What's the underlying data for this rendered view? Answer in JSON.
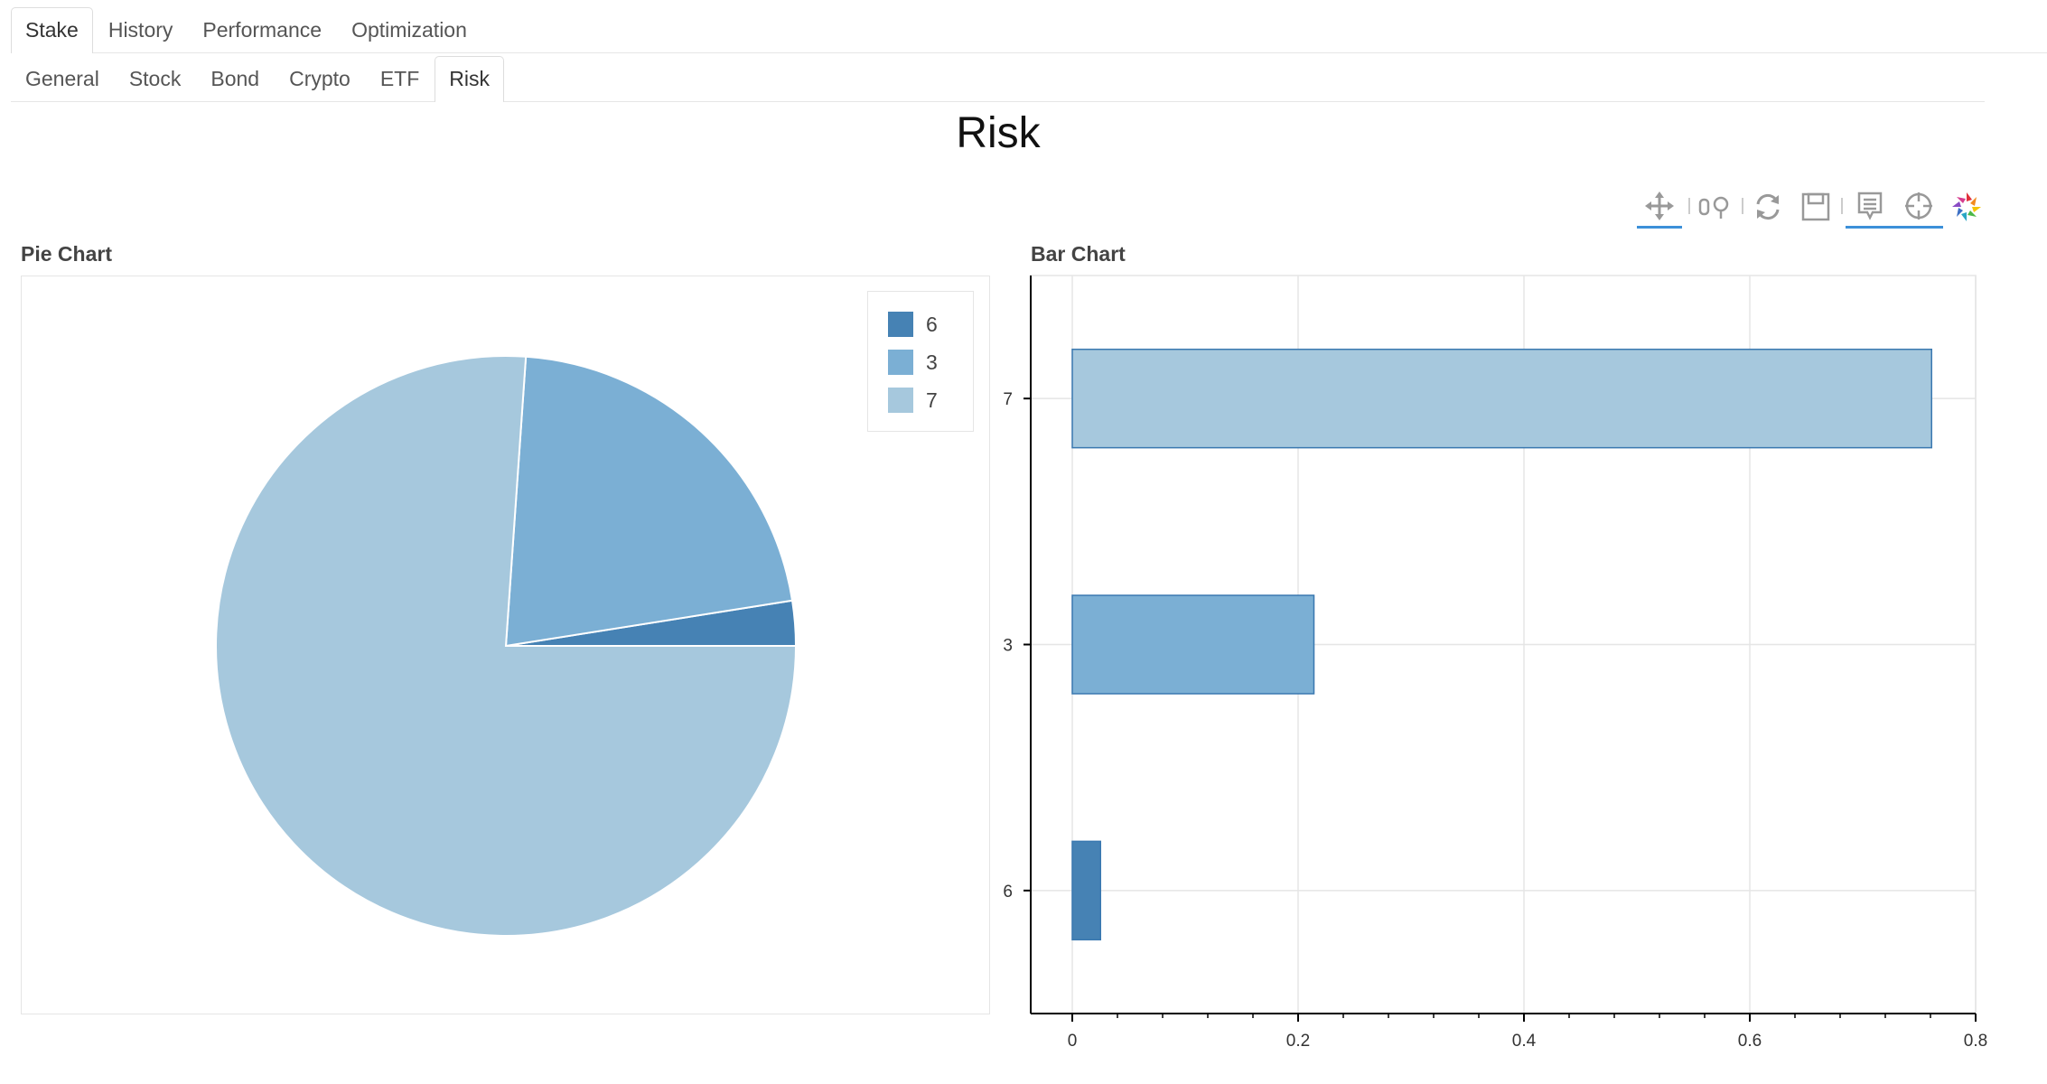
{
  "tabs_main": [
    {
      "label": "Stake",
      "active": true
    },
    {
      "label": "History",
      "active": false
    },
    {
      "label": "Performance",
      "active": false
    },
    {
      "label": "Optimization",
      "active": false
    }
  ],
  "tabs_sub": [
    {
      "label": "General",
      "active": false
    },
    {
      "label": "Stock",
      "active": false
    },
    {
      "label": "Bond",
      "active": false
    },
    {
      "label": "Crypto",
      "active": false
    },
    {
      "label": "ETF",
      "active": false
    },
    {
      "label": "Risk",
      "active": true
    }
  ],
  "page_title": "Risk",
  "toolbar": [
    "pan-icon",
    "box-zoom-icon",
    "reset-icon",
    "save-icon",
    "hover-icon",
    "crosshair-icon",
    "bokeh-logo-icon"
  ],
  "chart_data": [
    {
      "type": "pie",
      "title": "Pie Chart",
      "categories": [
        "6",
        "3",
        "7"
      ],
      "values": [
        0.025,
        0.214,
        0.761
      ],
      "colors": [
        "#4682b4",
        "#7bafd4",
        "#a6c8dd"
      ],
      "legend_position": "top-right"
    },
    {
      "type": "bar",
      "orientation": "horizontal",
      "title": "Bar Chart",
      "categories": [
        "7",
        "3",
        "6"
      ],
      "values": [
        0.761,
        0.214,
        0.025
      ],
      "colors": [
        "#a6c8dd",
        "#7bafd4",
        "#4682b4"
      ],
      "xlim": [
        0,
        0.8
      ],
      "xticks": [
        "0",
        "0.2",
        "0.4",
        "0.6",
        "0.8"
      ],
      "grid": true
    }
  ]
}
